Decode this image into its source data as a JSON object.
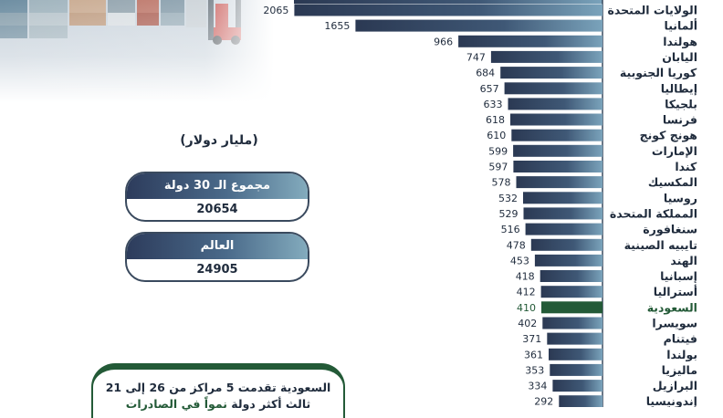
{
  "unit_label": "(مليار دولار)",
  "stat_boxes": [
    {
      "title": "مجموع الـ 30 دولة",
      "value": "20654"
    },
    {
      "title": "العالم",
      "value": "24905"
    }
  ],
  "note": {
    "line1": "السعودية تقدمت 5 مراكز من 26 إلى 21",
    "line2_prefix": "ثالث أكثر دولة ",
    "line2_highlight": "نمواً في الصادرات"
  },
  "colors": {
    "bar_dark": "#2b3953",
    "bar_light": "#7aa3bb",
    "highlight": "#235a37",
    "text": "#1f2b3c"
  },
  "chart_data": {
    "type": "bar",
    "orientation": "horizontal",
    "title": "",
    "xlabel": "",
    "ylabel": "",
    "highlight_category": "السعودية",
    "categories": [
      "الولايات المتحدة",
      "ألمانيا",
      "هولندا",
      "اليابان",
      "كوريا الجنوبية",
      "إيطاليا",
      "بلجيكا",
      "فرنسا",
      "هونج كونج",
      "الإمارات",
      "كندا",
      "المكسيك",
      "روسيا",
      "المملكة المتحدة",
      "سنغافورة",
      "تايبيه الصينية",
      "الهند",
      "إسبانيا",
      "أستراليا",
      "السعودية",
      "سويسرا",
      "فيتنام",
      "بولندا",
      "ماليزيا",
      "البرازيل",
      "إندونيسيا"
    ],
    "values": [
      2065,
      1655,
      966,
      747,
      684,
      657,
      633,
      618,
      610,
      599,
      597,
      578,
      532,
      529,
      516,
      478,
      453,
      418,
      412,
      410,
      402,
      371,
      361,
      353,
      334,
      292
    ]
  }
}
